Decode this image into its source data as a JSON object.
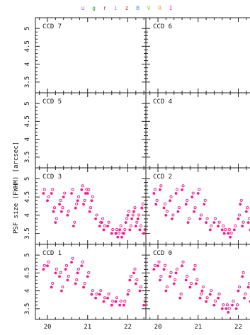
{
  "chart_data": {
    "type": "scatter",
    "ylabel": "PSF size (FWHM) [arcsec]",
    "xlabel": "",
    "xlim": [
      19.7,
      22.45
    ],
    "ylim": [
      3.2,
      5.3
    ],
    "x_ticks": [
      "20",
      "21",
      "22"
    ],
    "y_ticks": [
      "3.5",
      "4",
      "4.5",
      "5"
    ],
    "legend": [
      {
        "label": "u",
        "color": "#7b4de0"
      },
      {
        "label": "g",
        "color": "#3a9a3a"
      },
      {
        "label": "r",
        "color": "#d04040"
      },
      {
        "label": "i",
        "color": "#b080d0"
      },
      {
        "label": "z",
        "color": "#c03030"
      },
      {
        "label": "B",
        "color": "#5599ee"
      },
      {
        "label": "V",
        "color": "#88cc44"
      },
      {
        "label": "R",
        "color": "#f0a030"
      },
      {
        "label": "I",
        "color": "#e040c0"
      }
    ],
    "point_color": "#ea1f8e",
    "panels": [
      {
        "label": "CCD 7",
        "x": [],
        "y": []
      },
      {
        "label": "CCD 6",
        "x": [],
        "y": []
      },
      {
        "label": "CCD 5",
        "x": [],
        "y": []
      },
      {
        "label": "CCD 4",
        "x": [],
        "y": []
      },
      {
        "label": "CCD 3",
        "x": [
          19.9,
          20.0,
          20.1,
          20.15,
          20.2,
          20.3,
          20.35,
          20.4,
          20.5,
          20.6,
          20.65,
          20.7,
          20.75,
          20.85,
          20.9,
          20.95,
          21.0,
          21.05,
          21.1,
          21.2,
          21.3,
          21.35,
          21.4,
          21.5,
          21.6,
          21.7,
          21.75,
          21.8,
          21.85,
          21.9,
          21.95,
          22.0,
          22.05,
          22.1,
          22.15,
          22.2,
          22.25,
          22.3,
          22.35,
          22.4
        ],
        "y": [
          4.6,
          4.4,
          4.6,
          4.1,
          3.8,
          4.3,
          4.1,
          4.5,
          4.0,
          4.6,
          3.7,
          4.2,
          4.4,
          4.7,
          4.3,
          4.6,
          4.6,
          4.1,
          4.4,
          3.9,
          3.7,
          3.8,
          3.6,
          3.7,
          3.5,
          3.5,
          3.4,
          3.6,
          3.4,
          3.5,
          3.8,
          4.0,
          3.6,
          3.9,
          4.1,
          3.7,
          3.9,
          3.6,
          4.2,
          3.5
        ]
      },
      {
        "label": "CCD 2",
        "x": [
          19.9,
          19.95,
          20.05,
          20.15,
          20.2,
          20.3,
          20.35,
          20.45,
          20.5,
          20.6,
          20.7,
          20.75,
          20.85,
          20.9,
          21.0,
          21.05,
          21.15,
          21.2,
          21.3,
          21.4,
          21.5,
          21.6,
          21.65,
          21.75,
          21.8,
          21.9,
          22.0,
          22.05,
          22.1,
          22.2,
          22.25,
          22.3,
          22.4
        ],
        "y": [
          4.6,
          4.3,
          4.7,
          4.2,
          4.0,
          4.4,
          3.9,
          4.6,
          4.1,
          4.7,
          4.3,
          3.8,
          4.5,
          4.1,
          4.6,
          3.9,
          4.3,
          3.8,
          3.6,
          3.8,
          3.7,
          3.6,
          3.5,
          3.5,
          3.4,
          3.6,
          3.9,
          4.3,
          3.7,
          4.1,
          3.8,
          3.6,
          3.5
        ]
      },
      {
        "label": "CCD 1",
        "x": [
          19.9,
          20.0,
          20.1,
          20.2,
          20.3,
          20.35,
          20.45,
          20.5,
          20.6,
          20.7,
          20.75,
          20.85,
          20.9,
          21.0,
          21.1,
          21.2,
          21.3,
          21.4,
          21.5,
          21.6,
          21.7,
          21.8,
          21.9,
          22.0,
          22.05,
          22.15,
          22.2,
          22.3,
          22.4
        ],
        "y": [
          4.6,
          4.7,
          4.1,
          4.5,
          4.4,
          4.0,
          4.6,
          4.3,
          4.8,
          4.2,
          4.5,
          4.7,
          4.1,
          4.4,
          3.9,
          3.8,
          3.9,
          3.7,
          3.8,
          3.6,
          3.7,
          3.6,
          3.6,
          3.9,
          4.3,
          4.5,
          4.2,
          4.0,
          3.6
        ]
      },
      {
        "label": "CCD 0",
        "x": [
          19.9,
          20.0,
          20.05,
          20.15,
          20.2,
          20.3,
          20.4,
          20.45,
          20.55,
          20.6,
          20.7,
          20.8,
          20.9,
          20.95,
          21.05,
          21.1,
          21.2,
          21.3,
          21.4,
          21.5,
          21.6,
          21.7,
          21.75,
          21.85,
          21.95,
          22.0,
          22.1,
          22.15,
          22.25,
          22.3,
          22.4
        ],
        "y": [
          4.6,
          4.7,
          4.3,
          4.6,
          4.0,
          4.4,
          4.2,
          4.5,
          3.8,
          4.7,
          4.3,
          4.1,
          4.6,
          4.2,
          3.8,
          4.0,
          3.7,
          3.9,
          3.6,
          3.8,
          3.5,
          3.5,
          3.4,
          3.6,
          3.5,
          4.0,
          4.4,
          3.8,
          4.1,
          3.7,
          3.5
        ]
      }
    ]
  }
}
